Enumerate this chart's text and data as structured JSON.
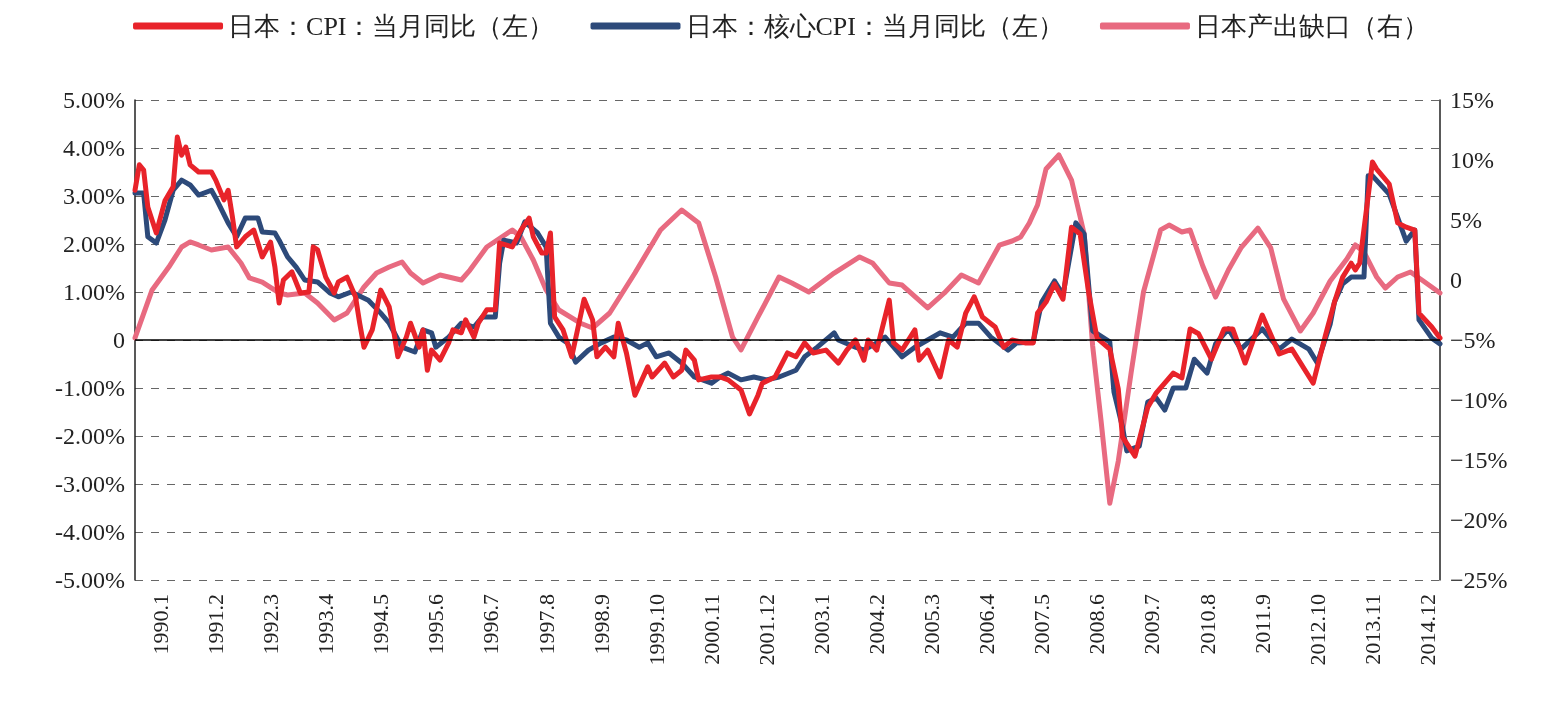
{
  "chart_data": {
    "type": "line",
    "xlim": [
      "1989-07",
      "2015-03"
    ],
    "xticks": [
      {
        "value": "1990-01",
        "label": "1990.1"
      },
      {
        "value": "1991-02",
        "label": "1991.2"
      },
      {
        "value": "1992-03",
        "label": "1992.3"
      },
      {
        "value": "1993-04",
        "label": "1993.4"
      },
      {
        "value": "1994-05",
        "label": "1994.5"
      },
      {
        "value": "1995-06",
        "label": "1995.6"
      },
      {
        "value": "1996-07",
        "label": "1996.7"
      },
      {
        "value": "1997-08",
        "label": "1997.8"
      },
      {
        "value": "1998-09",
        "label": "1998.9"
      },
      {
        "value": "1999-10",
        "label": "1999.10"
      },
      {
        "value": "2000-11",
        "label": "2000.11"
      },
      {
        "value": "2001-12",
        "label": "2001.12"
      },
      {
        "value": "2003-01",
        "label": "2003.1"
      },
      {
        "value": "2004-02",
        "label": "2004.2"
      },
      {
        "value": "2005-03",
        "label": "2005.3"
      },
      {
        "value": "2006-04",
        "label": "2006.4"
      },
      {
        "value": "2007-05",
        "label": "2007.5"
      },
      {
        "value": "2008-06",
        "label": "2008.6"
      },
      {
        "value": "2009-07",
        "label": "2009.7"
      },
      {
        "value": "2010-08",
        "label": "2010.8"
      },
      {
        "value": "2011-09",
        "label": "2011.9"
      },
      {
        "value": "2012-10",
        "label": "2012.10"
      },
      {
        "value": "2013-11",
        "label": "2013.11"
      },
      {
        "value": "2014-12",
        "label": "2014.12"
      }
    ],
    "ylim": [
      -5,
      5
    ],
    "yticks": [
      {
        "value": -5,
        "label": "-5.00%"
      },
      {
        "value": -4,
        "label": "-4.00%"
      },
      {
        "value": -3,
        "label": "-3.00%"
      },
      {
        "value": -2,
        "label": "-2.00%"
      },
      {
        "value": -1,
        "label": "-1.00%"
      },
      0,
      {
        "value": 1,
        "label": "1.00%"
      },
      {
        "value": 2,
        "label": "2.00%"
      },
      {
        "value": 3,
        "label": "3.00%"
      },
      {
        "value": 4,
        "label": "4.00%"
      },
      {
        "value": 5,
        "label": "5.00%"
      }
    ],
    "y2lim": [
      -25,
      15
    ],
    "y2ticks": [
      {
        "value": -25,
        "label": "−25%"
      },
      {
        "value": -20,
        "label": "−20%"
      },
      {
        "value": -15,
        "label": "−15%"
      },
      {
        "value": -10,
        "label": "−10%"
      },
      {
        "value": -5,
        "label": "−5%"
      },
      0,
      {
        "value": 5,
        "label": "5%"
      },
      {
        "value": 10,
        "label": "10%"
      },
      {
        "value": 15,
        "label": "15%"
      }
    ],
    "grid": "y",
    "legend": "top",
    "ref_lines": [
      {
        "axis": "y",
        "value": 0,
        "color": "#000000"
      }
    ],
    "series": [
      {
        "name": "日本：CPI：当月同比（左）",
        "color": "#e8232a",
        "x": [
          "1989-07",
          "1989-08",
          "1989-09",
          "1989-10",
          "1989-12",
          "1990-02",
          "1990-04",
          "1990-05",
          "1990-06",
          "1990-07",
          "1990-08",
          "1990-10",
          "1991-01",
          "1991-02",
          "1991-04",
          "1991-05",
          "1991-06",
          "1991-07",
          "1991-09",
          "1991-11",
          "1991-12",
          "1992-01",
          "1992-03",
          "1992-04",
          "1992-05",
          "1992-06",
          "1992-08",
          "1992-10",
          "1992-12",
          "1993-01",
          "1993-02",
          "1993-04",
          "1993-06",
          "1993-07",
          "1993-09",
          "1993-11",
          "1993-12",
          "1994-01",
          "1994-03",
          "1994-05",
          "1994-07",
          "1994-08",
          "1994-09",
          "1994-11",
          "1994-12",
          "1995-02",
          "1995-03",
          "1995-04",
          "1995-05",
          "1995-07",
          "1995-09",
          "1995-10",
          "1995-12",
          "1996-01",
          "1996-03",
          "1996-04",
          "1996-06",
          "1996-08",
          "1996-09",
          "1996-12",
          "1997-02",
          "1997-04",
          "1997-05",
          "1997-07",
          "1997-08",
          "1997-09",
          "1997-10",
          "1997-12",
          "1998-02",
          "1998-05",
          "1998-07",
          "1998-08",
          "1998-10",
          "1998-12",
          "1999-01",
          "1999-03",
          "1999-05",
          "1999-08",
          "1999-09",
          "1999-12",
          "2000-02",
          "2000-04",
          "2000-05",
          "2000-07",
          "2000-08",
          "2000-11",
          "2001-01",
          "2001-03",
          "2001-06",
          "2001-08",
          "2001-10",
          "2001-11",
          "2002-02",
          "2002-05",
          "2002-07",
          "2002-09",
          "2002-11",
          "2003-02",
          "2003-05",
          "2003-07",
          "2003-09",
          "2003-11",
          "2003-12",
          "2004-02",
          "2004-05",
          "2004-06",
          "2004-08",
          "2004-11",
          "2004-12",
          "2005-02",
          "2005-05",
          "2005-07",
          "2005-09",
          "2005-11",
          "2006-01",
          "2006-03",
          "2006-06",
          "2006-08",
          "2006-10",
          "2007-01",
          "2007-03",
          "2007-04",
          "2007-06",
          "2007-08",
          "2007-10",
          "2007-12",
          "2008-02",
          "2008-04",
          "2008-06",
          "2008-09",
          "2008-10",
          "2008-11",
          "2008-12",
          "2009-03",
          "2009-06",
          "2009-08",
          "2009-12",
          "2010-02",
          "2010-04",
          "2010-06",
          "2010-09",
          "2010-12",
          "2011-02",
          "2011-05",
          "2011-09",
          "2012-01",
          "2012-04",
          "2012-09",
          "2012-12",
          "2013-02",
          "2013-04",
          "2013-06",
          "2013-07",
          "2013-08",
          "2013-11",
          "2013-12",
          "2014-03",
          "2014-05",
          "2014-07",
          "2014-09",
          "2014-10",
          "2015-01",
          "2015-03"
        ],
        "values": [
          3.12,
          3.65,
          3.54,
          2.77,
          2.23,
          2.9,
          3.19,
          4.23,
          3.85,
          4.02,
          3.65,
          3.5,
          3.5,
          3.33,
          2.92,
          3.12,
          2.56,
          1.94,
          2.15,
          2.29,
          2.02,
          1.73,
          2.04,
          1.52,
          0.77,
          1.25,
          1.42,
          0.98,
          1.0,
          1.94,
          1.88,
          1.31,
          0.98,
          1.21,
          1.31,
          0.9,
          0.35,
          -0.15,
          0.21,
          1.04,
          0.69,
          0.21,
          -0.35,
          0.06,
          0.35,
          -0.15,
          0.21,
          -0.63,
          -0.21,
          -0.42,
          -0.06,
          0.21,
          0.15,
          0.42,
          0.06,
          0.35,
          0.63,
          0.63,
          2.02,
          1.94,
          2.29,
          2.54,
          2.15,
          1.81,
          1.81,
          2.23,
          0.48,
          0.21,
          -0.35,
          0.85,
          0.42,
          -0.35,
          -0.15,
          -0.35,
          0.35,
          -0.27,
          -1.15,
          -0.56,
          -0.77,
          -0.48,
          -0.77,
          -0.63,
          -0.21,
          -0.42,
          -0.83,
          -0.77,
          -0.77,
          -0.83,
          -1.04,
          -1.54,
          -1.15,
          -0.9,
          -0.77,
          -0.27,
          -0.35,
          -0.06,
          -0.27,
          -0.21,
          -0.48,
          -0.21,
          0,
          -0.42,
          0,
          -0.21,
          0.83,
          -0.06,
          -0.21,
          0.21,
          -0.42,
          -0.21,
          -0.77,
          0,
          -0.15,
          0.56,
          0.9,
          0.48,
          0.27,
          -0.15,
          0,
          -0.06,
          -0.06,
          0.56,
          0.79,
          1.17,
          0.85,
          2.35,
          2.21,
          1.02,
          0.04,
          -0.19,
          -0.6,
          -1.02,
          -2.02,
          -2.42,
          -1.4,
          -1.1,
          -0.69,
          -0.79,
          0.23,
          0.13,
          -0.4,
          0.23,
          0.23,
          -0.48,
          0.52,
          -0.29,
          -0.19,
          -0.9,
          0.13,
          0.79,
          1.31,
          1.6,
          1.46,
          1.6,
          3.71,
          3.56,
          3.25,
          2.44,
          2.35,
          2.29,
          0.56,
          0.27,
          0.04
        ]
      },
      {
        "name": "日本：核心CPI：当月同比（左）",
        "color": "#2d4a7a",
        "x": [
          "1989-07",
          "1989-09",
          "1989-10",
          "1989-12",
          "1990-02",
          "1990-04",
          "1990-06",
          "1990-08",
          "1990-10",
          "1991-01",
          "1991-02",
          "1991-05",
          "1991-07",
          "1991-09",
          "1991-12",
          "1992-01",
          "1992-04",
          "1992-05",
          "1992-07",
          "1992-09",
          "1992-11",
          "1993-02",
          "1993-05",
          "1993-07",
          "1993-10",
          "1994-02",
          "1994-05",
          "1994-07",
          "1994-10",
          "1995-01",
          "1995-03",
          "1995-05",
          "1995-06",
          "1995-09",
          "1995-12",
          "1996-03",
          "1996-05",
          "1996-08",
          "1996-09",
          "1996-10",
          "1997-01",
          "1997-03",
          "1997-06",
          "1997-08",
          "1997-09",
          "1997-11",
          "1998-01",
          "1998-03",
          "1998-06",
          "1998-09",
          "1998-12",
          "1999-03",
          "1999-06",
          "1999-08",
          "1999-10",
          "2000-01",
          "2000-04",
          "2000-07",
          "2000-11",
          "2001-01",
          "2001-03",
          "2001-06",
          "2001-09",
          "2001-12",
          "2002-03",
          "2002-07",
          "2002-09",
          "2002-12",
          "2003-04",
          "2003-05",
          "2003-09",
          "2003-11",
          "2004-02",
          "2004-04",
          "2004-08",
          "2004-11",
          "2005-02",
          "2005-05",
          "2005-08",
          "2005-11",
          "2006-02",
          "2006-05",
          "2006-09",
          "2006-11",
          "2007-03",
          "2007-05",
          "2007-08",
          "2007-10",
          "2008-01",
          "2008-03",
          "2008-05",
          "2008-09",
          "2008-10",
          "2008-12",
          "2009-01",
          "2009-04",
          "2009-06",
          "2009-08",
          "2009-10",
          "2009-12",
          "2010-03",
          "2010-05",
          "2010-08",
          "2010-10",
          "2011-01",
          "2011-04",
          "2011-09",
          "2012-01",
          "2012-04",
          "2012-08",
          "2012-10",
          "2013-01",
          "2013-02",
          "2013-04",
          "2013-06",
          "2013-09",
          "2013-10",
          "2013-11",
          "2014-03",
          "2014-07",
          "2014-09",
          "2014-10",
          "2015-01",
          "2015-03"
        ],
        "values": [
          3.06,
          3.06,
          2.15,
          2.02,
          2.5,
          3.12,
          3.33,
          3.23,
          3.02,
          3.12,
          2.96,
          2.44,
          2.15,
          2.54,
          2.54,
          2.25,
          2.23,
          2.08,
          1.73,
          1.52,
          1.25,
          1.21,
          0.98,
          0.9,
          1.0,
          0.83,
          0.56,
          0.35,
          -0.15,
          -0.25,
          0.21,
          0.15,
          -0.15,
          0.06,
          0.35,
          0.27,
          0.48,
          0.48,
          1.6,
          2.08,
          2.02,
          2.46,
          2.23,
          1.94,
          0.35,
          0.06,
          -0.06,
          -0.46,
          -0.21,
          -0.06,
          0.06,
          0,
          -0.15,
          -0.06,
          -0.35,
          -0.27,
          -0.48,
          -0.77,
          -0.9,
          -0.77,
          -0.69,
          -0.83,
          -0.77,
          -0.83,
          -0.77,
          -0.63,
          -0.35,
          -0.15,
          0.15,
          0,
          -0.15,
          -0.21,
          -0.06,
          0.06,
          -0.35,
          -0.15,
          0,
          0.15,
          0.06,
          0.35,
          0.35,
          0.06,
          -0.21,
          -0.06,
          -0.04,
          0.79,
          1.23,
          0.94,
          2.44,
          2.21,
          0.19,
          -0.04,
          -1.08,
          -1.81,
          -2.31,
          -2.21,
          -1.29,
          -1.21,
          -1.46,
          -1.0,
          -1.0,
          -0.4,
          -0.69,
          -0.08,
          0.23,
          -0.19,
          0.23,
          -0.19,
          0.02,
          -0.19,
          -0.48,
          0.33,
          0.79,
          1.17,
          1.31,
          1.31,
          3.42,
          3.42,
          3.04,
          2.06,
          2.29,
          0.42,
          0.04,
          -0.08
        ]
      },
      {
        "name": "日本产出缺口（右）",
        "color": "#e86a80",
        "axis": "y2",
        "x": [
          "1989-07",
          "1989-11",
          "1990-03",
          "1990-06",
          "1990-08",
          "1990-10",
          "1991-01",
          "1991-05",
          "1991-08",
          "1991-10",
          "1992-01",
          "1992-05",
          "1992-07",
          "1992-11",
          "1993-02",
          "1993-06",
          "1993-09",
          "1994-01",
          "1994-04",
          "1994-07",
          "1994-10",
          "1994-12",
          "1995-03",
          "1995-07",
          "1995-12",
          "1996-02",
          "1996-06",
          "1996-12",
          "1997-02",
          "1997-05",
          "1997-08",
          "1997-11",
          "1998-04",
          "1998-07",
          "1998-11",
          "1999-05",
          "1999-11",
          "2000-04",
          "2000-08",
          "2000-12",
          "2001-04",
          "2001-06",
          "2001-10",
          "2002-03",
          "2002-06",
          "2002-10",
          "2003-04",
          "2003-10",
          "2004-01",
          "2004-05",
          "2004-08",
          "2005-02",
          "2005-06",
          "2005-10",
          "2006-02",
          "2006-07",
          "2006-10",
          "2006-12",
          "2007-02",
          "2007-04",
          "2007-05",
          "2007-06",
          "2007-09",
          "2007-12",
          "2008-03",
          "2008-05",
          "2008-07",
          "2008-09",
          "2008-11",
          "2009-02",
          "2009-05",
          "2009-09",
          "2009-11",
          "2010-02",
          "2010-04",
          "2010-07",
          "2010-10",
          "2011-01",
          "2011-04",
          "2011-08",
          "2011-11",
          "2012-02",
          "2012-06",
          "2012-09",
          "2013-01",
          "2013-05",
          "2013-07",
          "2013-09",
          "2013-12",
          "2014-02",
          "2014-05",
          "2014-08",
          "2014-11",
          "2015-03"
        ],
        "values": [
          -4.83,
          -0.83,
          1.08,
          2.75,
          3.17,
          2.92,
          2.5,
          2.75,
          1.42,
          0.17,
          -0.17,
          -1.08,
          -1.25,
          -1.08,
          -1.92,
          -3.33,
          -2.75,
          -0.58,
          0.58,
          1.08,
          1.5,
          0.58,
          -0.25,
          0.42,
          0,
          0.83,
          2.75,
          4.17,
          3.58,
          1.67,
          -0.83,
          -2.5,
          -3.58,
          -4.0,
          -2.75,
          0.58,
          4.17,
          5.83,
          4.75,
          0.25,
          -4.75,
          -5.83,
          -3.08,
          0.25,
          -0.25,
          -1.0,
          0.58,
          1.92,
          1.42,
          -0.25,
          -0.42,
          -2.33,
          -1.08,
          0.42,
          -0.25,
          2.9,
          3.25,
          3.58,
          4.75,
          6.25,
          7.75,
          9.25,
          10.42,
          8.33,
          3.83,
          -5.5,
          -11.8,
          -18.6,
          -15.1,
          -7.75,
          -1.0,
          4.17,
          4.58,
          4.0,
          4.17,
          1.17,
          -1.42,
          0.83,
          2.67,
          4.33,
          2.67,
          -1.58,
          -4.25,
          -2.75,
          -0.08,
          1.75,
          2.92,
          2.33,
          0.25,
          -0.67,
          0.25,
          0.67,
          -0.08,
          -1.08
        ]
      }
    ]
  }
}
